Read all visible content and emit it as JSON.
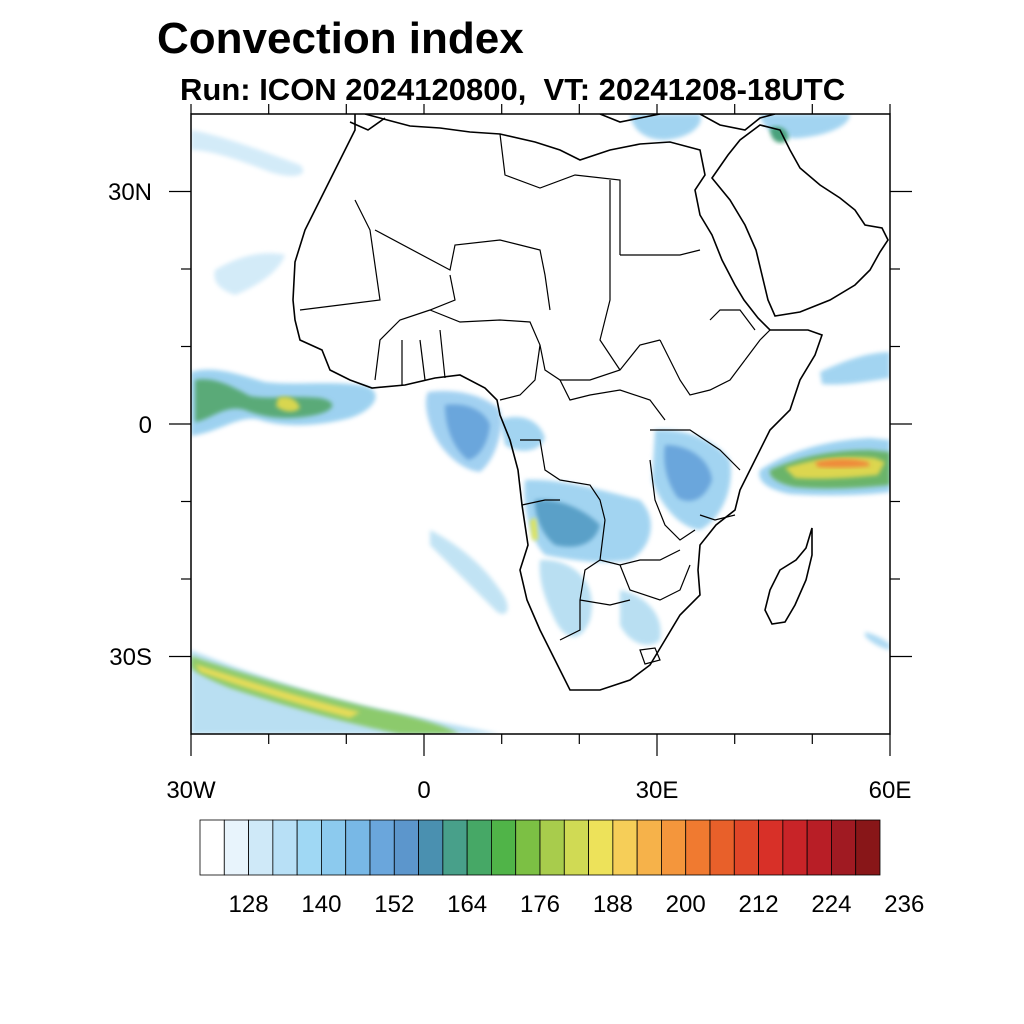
{
  "title": "Convection index",
  "subtitle": "Run: ICON 2024120800,  VT: 20241208-18UTC",
  "map": {
    "lon_range": [
      -30,
      60
    ],
    "lat_range": [
      -40,
      40
    ],
    "lon_ticks": [
      {
        "value": -30,
        "label": "30W"
      },
      {
        "value": 0,
        "label": "0"
      },
      {
        "value": 30,
        "label": "30E"
      },
      {
        "value": 60,
        "label": "60E"
      }
    ],
    "lat_ticks": [
      {
        "value": 30,
        "label": "30N"
      },
      {
        "value": 0,
        "label": "0"
      },
      {
        "value": -30,
        "label": "30S"
      }
    ],
    "region": "Africa"
  },
  "colorbar": {
    "colors": [
      "#ffffff",
      "#e8f4fc",
      "#cfe9f8",
      "#b8e0f6",
      "#a0d8f4",
      "#8ccaee",
      "#78b8e6",
      "#6aa6dc",
      "#5c96cc",
      "#4a90b0",
      "#48a08a",
      "#46a866",
      "#50b448",
      "#7cc044",
      "#a8cc4c",
      "#d0da54",
      "#ede25a",
      "#f6ce58",
      "#f6b24a",
      "#f4963c",
      "#f07a30",
      "#e8602a",
      "#e04628",
      "#d83028",
      "#c82428",
      "#b81e26",
      "#a01a22",
      "#881618"
    ],
    "labels": [
      "128",
      "140",
      "152",
      "164",
      "176",
      "188",
      "200",
      "212",
      "224",
      "236"
    ]
  }
}
